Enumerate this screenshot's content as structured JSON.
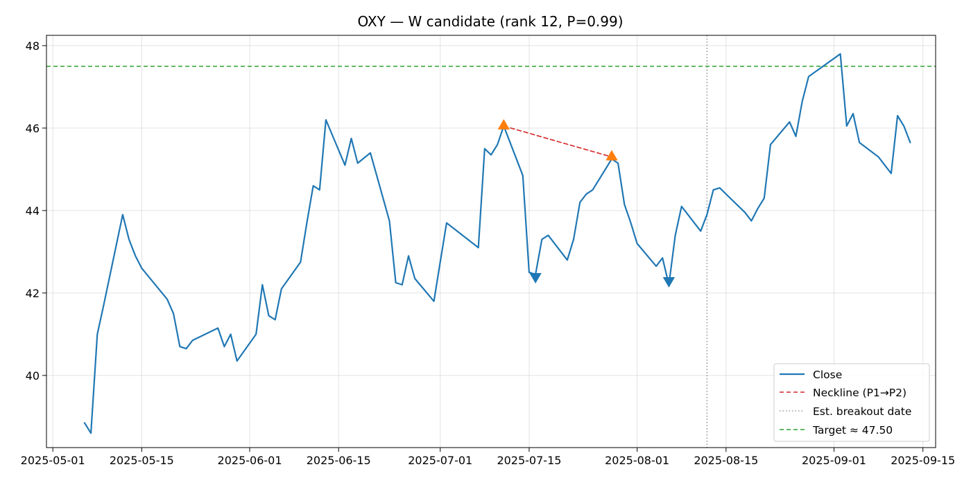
{
  "chart_data": {
    "type": "line",
    "title": "OXY — W candidate (rank 12, P=0.99)",
    "xlabel": "",
    "ylabel": "",
    "xlim": [
      "2025-04-30",
      "2025-09-17"
    ],
    "ylim": [
      38.25,
      48.25
    ],
    "grid": true,
    "x_ticks": [
      "2025-05-01",
      "2025-05-15",
      "2025-06-01",
      "2025-06-15",
      "2025-07-01",
      "2025-07-15",
      "2025-08-01",
      "2025-08-15",
      "2025-09-01",
      "2025-09-15"
    ],
    "y_ticks": [
      40,
      42,
      44,
      46,
      48
    ],
    "legend_position": "lower-right",
    "series": [
      {
        "name": "Close",
        "color": "#1f77b4",
        "points": [
          [
            "2025-05-06",
            38.85
          ],
          [
            "2025-05-07",
            38.6
          ],
          [
            "2025-05-08",
            41.0
          ],
          [
            "2025-05-09",
            41.7
          ],
          [
            "2025-05-12",
            43.9
          ],
          [
            "2025-05-13",
            43.3
          ],
          [
            "2025-05-14",
            42.9
          ],
          [
            "2025-05-15",
            42.6
          ],
          [
            "2025-05-19",
            41.85
          ],
          [
            "2025-05-20",
            41.5
          ],
          [
            "2025-05-21",
            40.7
          ],
          [
            "2025-05-22",
            40.65
          ],
          [
            "2025-05-23",
            40.85
          ],
          [
            "2025-05-27",
            41.15
          ],
          [
            "2025-05-28",
            40.7
          ],
          [
            "2025-05-29",
            41.0
          ],
          [
            "2025-05-30",
            40.35
          ],
          [
            "2025-06-02",
            41.0
          ],
          [
            "2025-06-03",
            42.2
          ],
          [
            "2025-06-04",
            41.45
          ],
          [
            "2025-06-05",
            41.35
          ],
          [
            "2025-06-06",
            42.1
          ],
          [
            "2025-06-09",
            42.75
          ],
          [
            "2025-06-10",
            43.7
          ],
          [
            "2025-06-11",
            44.6
          ],
          [
            "2025-06-12",
            44.5
          ],
          [
            "2025-06-13",
            46.2
          ],
          [
            "2025-06-16",
            45.1
          ],
          [
            "2025-06-17",
            45.75
          ],
          [
            "2025-06-18",
            45.15
          ],
          [
            "2025-06-20",
            45.4
          ],
          [
            "2025-06-23",
            43.75
          ],
          [
            "2025-06-24",
            42.25
          ],
          [
            "2025-06-25",
            42.2
          ],
          [
            "2025-06-26",
            42.9
          ],
          [
            "2025-06-27",
            42.35
          ],
          [
            "2025-06-30",
            41.8
          ],
          [
            "2025-07-01",
            42.75
          ],
          [
            "2025-07-02",
            43.7
          ],
          [
            "2025-07-07",
            43.1
          ],
          [
            "2025-07-08",
            45.5
          ],
          [
            "2025-07-09",
            45.35
          ],
          [
            "2025-07-10",
            45.6
          ],
          [
            "2025-07-11",
            46.05
          ],
          [
            "2025-07-14",
            44.85
          ],
          [
            "2025-07-15",
            42.5
          ],
          [
            "2025-07-16",
            42.45
          ],
          [
            "2025-07-17",
            43.3
          ],
          [
            "2025-07-18",
            43.4
          ],
          [
            "2025-07-21",
            42.8
          ],
          [
            "2025-07-22",
            43.3
          ],
          [
            "2025-07-23",
            44.2
          ],
          [
            "2025-07-24",
            44.4
          ],
          [
            "2025-07-25",
            44.5
          ],
          [
            "2025-07-28",
            45.25
          ],
          [
            "2025-07-29",
            45.15
          ],
          [
            "2025-07-30",
            44.15
          ],
          [
            "2025-07-31",
            43.7
          ],
          [
            "2025-08-01",
            43.2
          ],
          [
            "2025-08-04",
            42.65
          ],
          [
            "2025-08-05",
            42.85
          ],
          [
            "2025-08-06",
            42.2
          ],
          [
            "2025-08-07",
            43.4
          ],
          [
            "2025-08-08",
            44.1
          ],
          [
            "2025-08-11",
            43.5
          ],
          [
            "2025-08-12",
            43.9
          ],
          [
            "2025-08-13",
            44.5
          ],
          [
            "2025-08-14",
            44.55
          ],
          [
            "2025-08-15",
            44.4
          ],
          [
            "2025-08-18",
            43.95
          ],
          [
            "2025-08-19",
            43.75
          ],
          [
            "2025-08-20",
            44.05
          ],
          [
            "2025-08-21",
            44.3
          ],
          [
            "2025-08-22",
            45.6
          ],
          [
            "2025-08-25",
            46.15
          ],
          [
            "2025-08-26",
            45.8
          ],
          [
            "2025-08-27",
            46.65
          ],
          [
            "2025-08-28",
            47.25
          ],
          [
            "2025-09-02",
            47.8
          ],
          [
            "2025-09-03",
            46.05
          ],
          [
            "2025-09-04",
            46.35
          ],
          [
            "2025-09-05",
            45.65
          ],
          [
            "2025-09-08",
            45.3
          ],
          [
            "2025-09-09",
            45.1
          ],
          [
            "2025-09-10",
            44.9
          ],
          [
            "2025-09-11",
            46.3
          ],
          [
            "2025-09-12",
            46.05
          ],
          [
            "2025-09-13",
            45.65
          ]
        ]
      },
      {
        "name": "Neckline (P1→P2)",
        "color": "#d62728",
        "style": "dashed",
        "points": [
          [
            "2025-07-11",
            46.05
          ],
          [
            "2025-07-28",
            45.3
          ]
        ]
      },
      {
        "name": "Est. breakout date",
        "color": "#808080",
        "style": "dotted",
        "vertical_at": "2025-08-12"
      },
      {
        "name": "Target ≈ 47.50",
        "color": "#2ca02c",
        "style": "dashed",
        "horizontal_at": 47.5
      }
    ],
    "markers": [
      {
        "role": "peak",
        "shape": "triangle-up",
        "color": "#ff7f0e",
        "x": "2025-07-11",
        "y": 46.05
      },
      {
        "role": "peak",
        "shape": "triangle-up",
        "color": "#ff7f0e",
        "x": "2025-07-28",
        "y": 45.3
      },
      {
        "role": "trough",
        "shape": "triangle-down",
        "color": "#1f77b4",
        "x": "2025-07-16",
        "y": 42.4
      },
      {
        "role": "trough",
        "shape": "triangle-down",
        "color": "#1f77b4",
        "x": "2025-08-06",
        "y": 42.3
      }
    ]
  }
}
